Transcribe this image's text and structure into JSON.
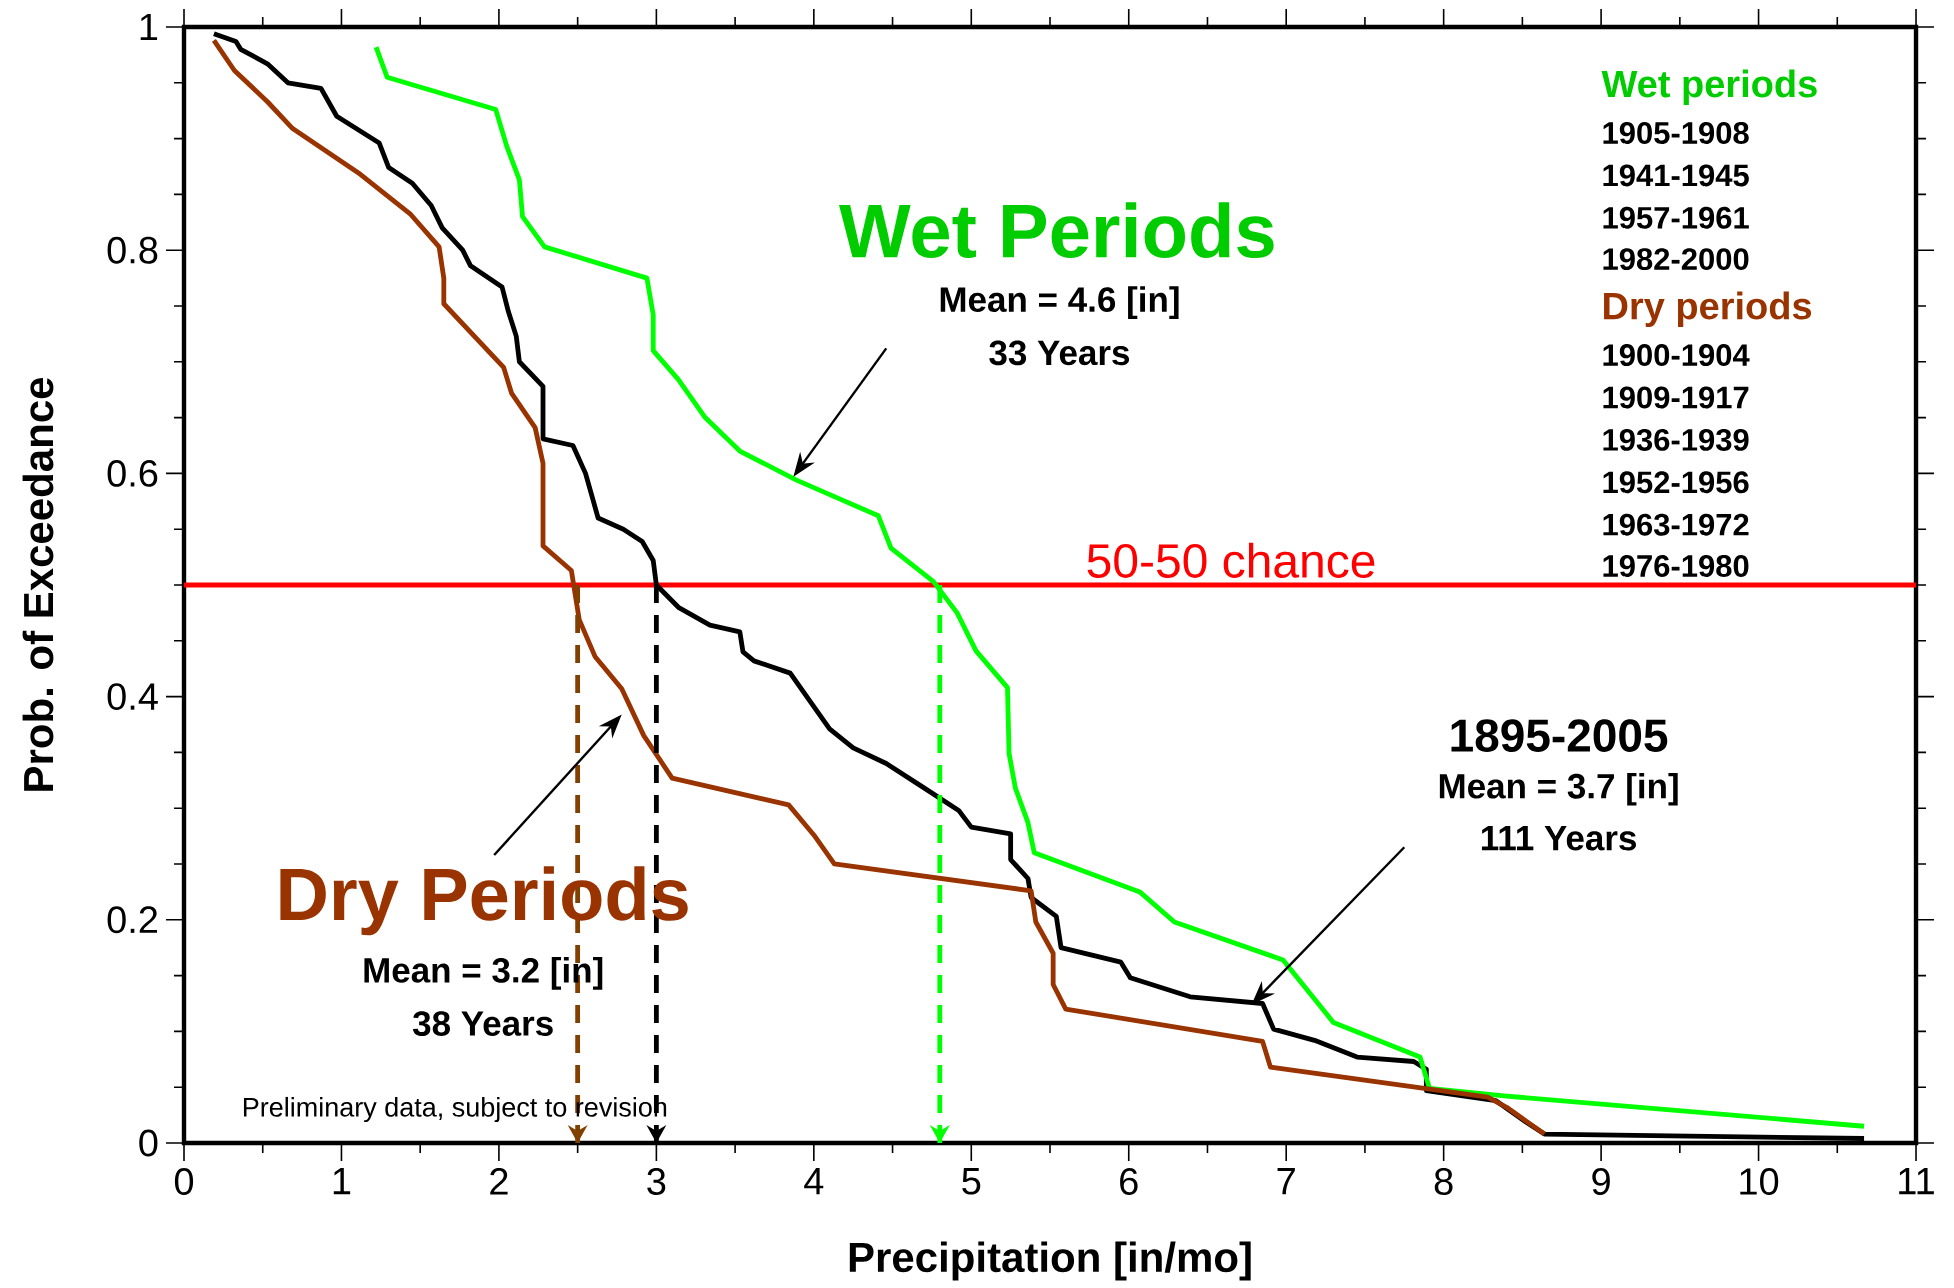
{
  "chart_data": {
    "type": "line",
    "xlabel": "Precipitation [in/mo]",
    "ylabel": "Prob. of Exceedance",
    "xlim": [
      0,
      11
    ],
    "xticks": [
      0,
      1,
      2,
      3,
      4,
      5,
      6,
      7,
      8,
      9,
      10,
      11
    ],
    "ylim": [
      0,
      1
    ],
    "yticks": [
      0,
      0.2,
      0.4,
      0.6,
      0.8,
      1
    ],
    "grid": false,
    "marker": "none",
    "line_style": "solid",
    "series": [
      {
        "color": "#000000",
        "x": [
          0.19,
          0.33,
          0.36,
          0.53,
          0.66,
          0.87,
          0.97,
          1.24,
          1.3,
          1.45,
          1.57,
          1.64,
          1.77,
          1.82,
          2.02,
          2.06,
          2.11,
          2.13,
          2.28,
          2.28,
          2.47,
          2.55,
          2.59,
          2.63,
          2.79,
          2.91,
          2.98,
          3.0,
          3.14,
          3.34,
          3.53,
          3.55,
          3.62,
          3.85,
          3.99,
          4.1,
          4.25,
          4.46,
          4.68,
          4.92,
          5.0,
          5.25,
          5.25,
          5.36,
          5.38,
          5.54,
          5.57,
          5.95,
          6.01,
          6.39,
          6.85,
          6.92,
          7.18,
          7.45,
          7.81,
          7.89,
          7.89,
          8.33,
          8.52,
          8.64,
          10.67
        ],
        "values": [
          0.994,
          0.987,
          0.98,
          0.967,
          0.95,
          0.945,
          0.92,
          0.896,
          0.874,
          0.86,
          0.84,
          0.82,
          0.8,
          0.786,
          0.767,
          0.745,
          0.723,
          0.7,
          0.678,
          0.631,
          0.625,
          0.6,
          0.58,
          0.56,
          0.55,
          0.539,
          0.522,
          0.5,
          0.48,
          0.464,
          0.458,
          0.44,
          0.432,
          0.421,
          0.393,
          0.371,
          0.354,
          0.34,
          0.32,
          0.298,
          0.283,
          0.277,
          0.254,
          0.237,
          0.22,
          0.203,
          0.175,
          0.162,
          0.148,
          0.131,
          0.125,
          0.102,
          0.092,
          0.077,
          0.073,
          0.066,
          0.047,
          0.038,
          0.019,
          0.008,
          0.004
        ]
      },
      {
        "color": "#00ff00",
        "x": [
          1.22,
          1.29,
          1.98,
          2.05,
          2.13,
          2.15,
          2.29,
          2.94,
          2.98,
          2.98,
          3.14,
          3.31,
          3.53,
          3.89,
          4.41,
          4.49,
          4.76,
          4.91,
          5.03,
          5.23,
          5.24,
          5.28,
          5.36,
          5.4,
          6.07,
          6.29,
          6.98,
          7.3,
          7.85,
          7.91,
          8.4,
          10.67
        ],
        "values": [
          0.982,
          0.955,
          0.926,
          0.893,
          0.863,
          0.83,
          0.803,
          0.775,
          0.742,
          0.71,
          0.684,
          0.65,
          0.62,
          0.594,
          0.562,
          0.533,
          0.503,
          0.475,
          0.441,
          0.408,
          0.349,
          0.318,
          0.287,
          0.26,
          0.225,
          0.198,
          0.164,
          0.108,
          0.077,
          0.049,
          0.042,
          0.015
        ]
      },
      {
        "color": "#993300",
        "x": [
          0.19,
          0.32,
          0.53,
          0.69,
          1.12,
          1.44,
          1.62,
          1.65,
          1.65,
          2.03,
          2.08,
          2.23,
          2.28,
          2.28,
          2.46,
          2.51,
          2.61,
          2.78,
          2.92,
          3.1,
          3.84,
          4.0,
          4.13,
          5.38,
          5.41,
          5.52,
          5.52,
          5.6,
          6.85,
          6.9,
          8.28,
          8.4,
          8.64
        ],
        "values": [
          0.988,
          0.961,
          0.933,
          0.909,
          0.868,
          0.832,
          0.803,
          0.775,
          0.752,
          0.695,
          0.672,
          0.641,
          0.609,
          0.535,
          0.513,
          0.469,
          0.436,
          0.407,
          0.365,
          0.327,
          0.303,
          0.276,
          0.25,
          0.226,
          0.198,
          0.17,
          0.142,
          0.12,
          0.091,
          0.068,
          0.041,
          0.032,
          0.008
        ]
      },
      {
        "color": "#804000",
        "line_style": "dashed",
        "x": [
          2.5,
          2.5
        ],
        "values": [
          0.5,
          0
        ]
      },
      {
        "color": "#000000",
        "line_style": "dashed",
        "x": [
          3.0,
          3.0
        ],
        "values": [
          0.5,
          0
        ]
      },
      {
        "color": "#00ff00",
        "line_style": "dashed",
        "x": [
          4.8,
          4.8
        ],
        "values": [
          0.5,
          0
        ]
      }
    ],
    "ref_lines": [
      {
        "axis": "y",
        "value": 0.5,
        "label": "50-50 chance",
        "color": "#ff0000"
      }
    ],
    "annotations": [
      "1895-2005",
      "Wet Periods",
      "Dry Periods",
      "Mean = 3.7 [in]",
      "111 Years",
      "Mean = 4.6 [in]",
      "33 Years",
      "Mean = 3.2 [in]",
      "38 Years",
      "Preliminary data, subject to revision",
      "Wet periods",
      "1905-1908",
      "1941-1945",
      "1957-1961",
      "1982-2000",
      "Dry periods",
      "1900-1904",
      "1909-1917",
      "1936-1939",
      "1952-1956",
      "1963-1972",
      "1976-1980"
    ]
  }
}
